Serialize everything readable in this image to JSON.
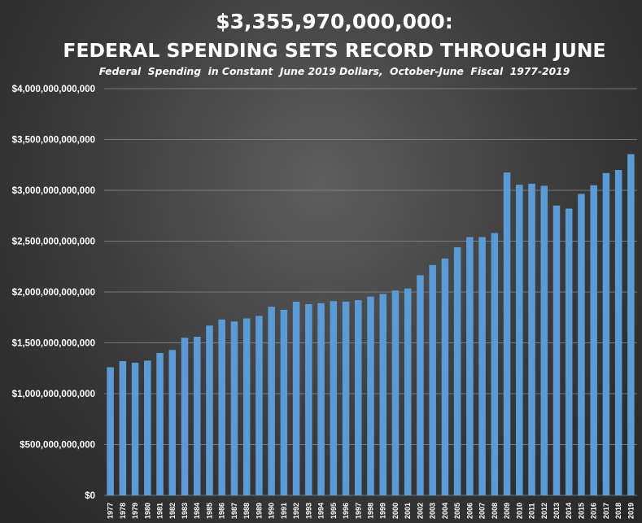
{
  "chart_data": {
    "type": "bar",
    "title": "$3,355,970,000,000:",
    "title_line2": "FEDERAL SPENDING SETS RECORD THROUGH JUNE",
    "subtitle": "Federal  Spending  in Constant  June 2019 Dollars,  October-June  Fiscal  1977-2019",
    "xlabel": "",
    "ylabel": "",
    "ylim": [
      0,
      4000000000000
    ],
    "grid": true,
    "bar_color": "#5b9bd5",
    "y_ticks": [
      {
        "value": 0,
        "label": "$0"
      },
      {
        "value": 500000000000,
        "label": "$500,000,000,000"
      },
      {
        "value": 1000000000000,
        "label": "$1,000,000,000,000"
      },
      {
        "value": 1500000000000,
        "label": "$1,500,000,000,000"
      },
      {
        "value": 2000000000000,
        "label": "$2,000,000,000,000"
      },
      {
        "value": 2500000000000,
        "label": "$2,500,000,000,000"
      },
      {
        "value": 3000000000000,
        "label": "$3,000,000,000,000"
      },
      {
        "value": 3500000000000,
        "label": "$3,500,000,000,000"
      },
      {
        "value": 4000000000000,
        "label": "$4,000,000,000,000"
      }
    ],
    "categories": [
      "1977",
      "1978",
      "1979",
      "1980",
      "1981",
      "1982",
      "1983",
      "1984",
      "1985",
      "1986",
      "1987",
      "1988",
      "1989",
      "1990",
      "1991",
      "1992",
      "1993",
      "1994",
      "1995",
      "1996",
      "1997",
      "1998",
      "1999",
      "2000",
      "2001",
      "2002",
      "2003",
      "2004",
      "2005",
      "2006",
      "2007",
      "2008",
      "2009",
      "2010",
      "2011",
      "2012",
      "2013",
      "2014",
      "2015",
      "2016",
      "2017",
      "2018",
      "2019"
    ],
    "values": [
      1260000000000,
      1320000000000,
      1305000000000,
      1325000000000,
      1400000000000,
      1430000000000,
      1550000000000,
      1560000000000,
      1670000000000,
      1730000000000,
      1710000000000,
      1740000000000,
      1765000000000,
      1855000000000,
      1825000000000,
      1905000000000,
      1880000000000,
      1890000000000,
      1910000000000,
      1905000000000,
      1920000000000,
      1955000000000,
      1980000000000,
      2015000000000,
      2035000000000,
      2165000000000,
      2265000000000,
      2330000000000,
      2440000000000,
      2540000000000,
      2540000000000,
      2580000000000,
      3175000000000,
      3055000000000,
      3065000000000,
      3045000000000,
      2850000000000,
      2820000000000,
      2965000000000,
      3050000000000,
      3170000000000,
      3200000000000,
      3355970000000
    ]
  }
}
